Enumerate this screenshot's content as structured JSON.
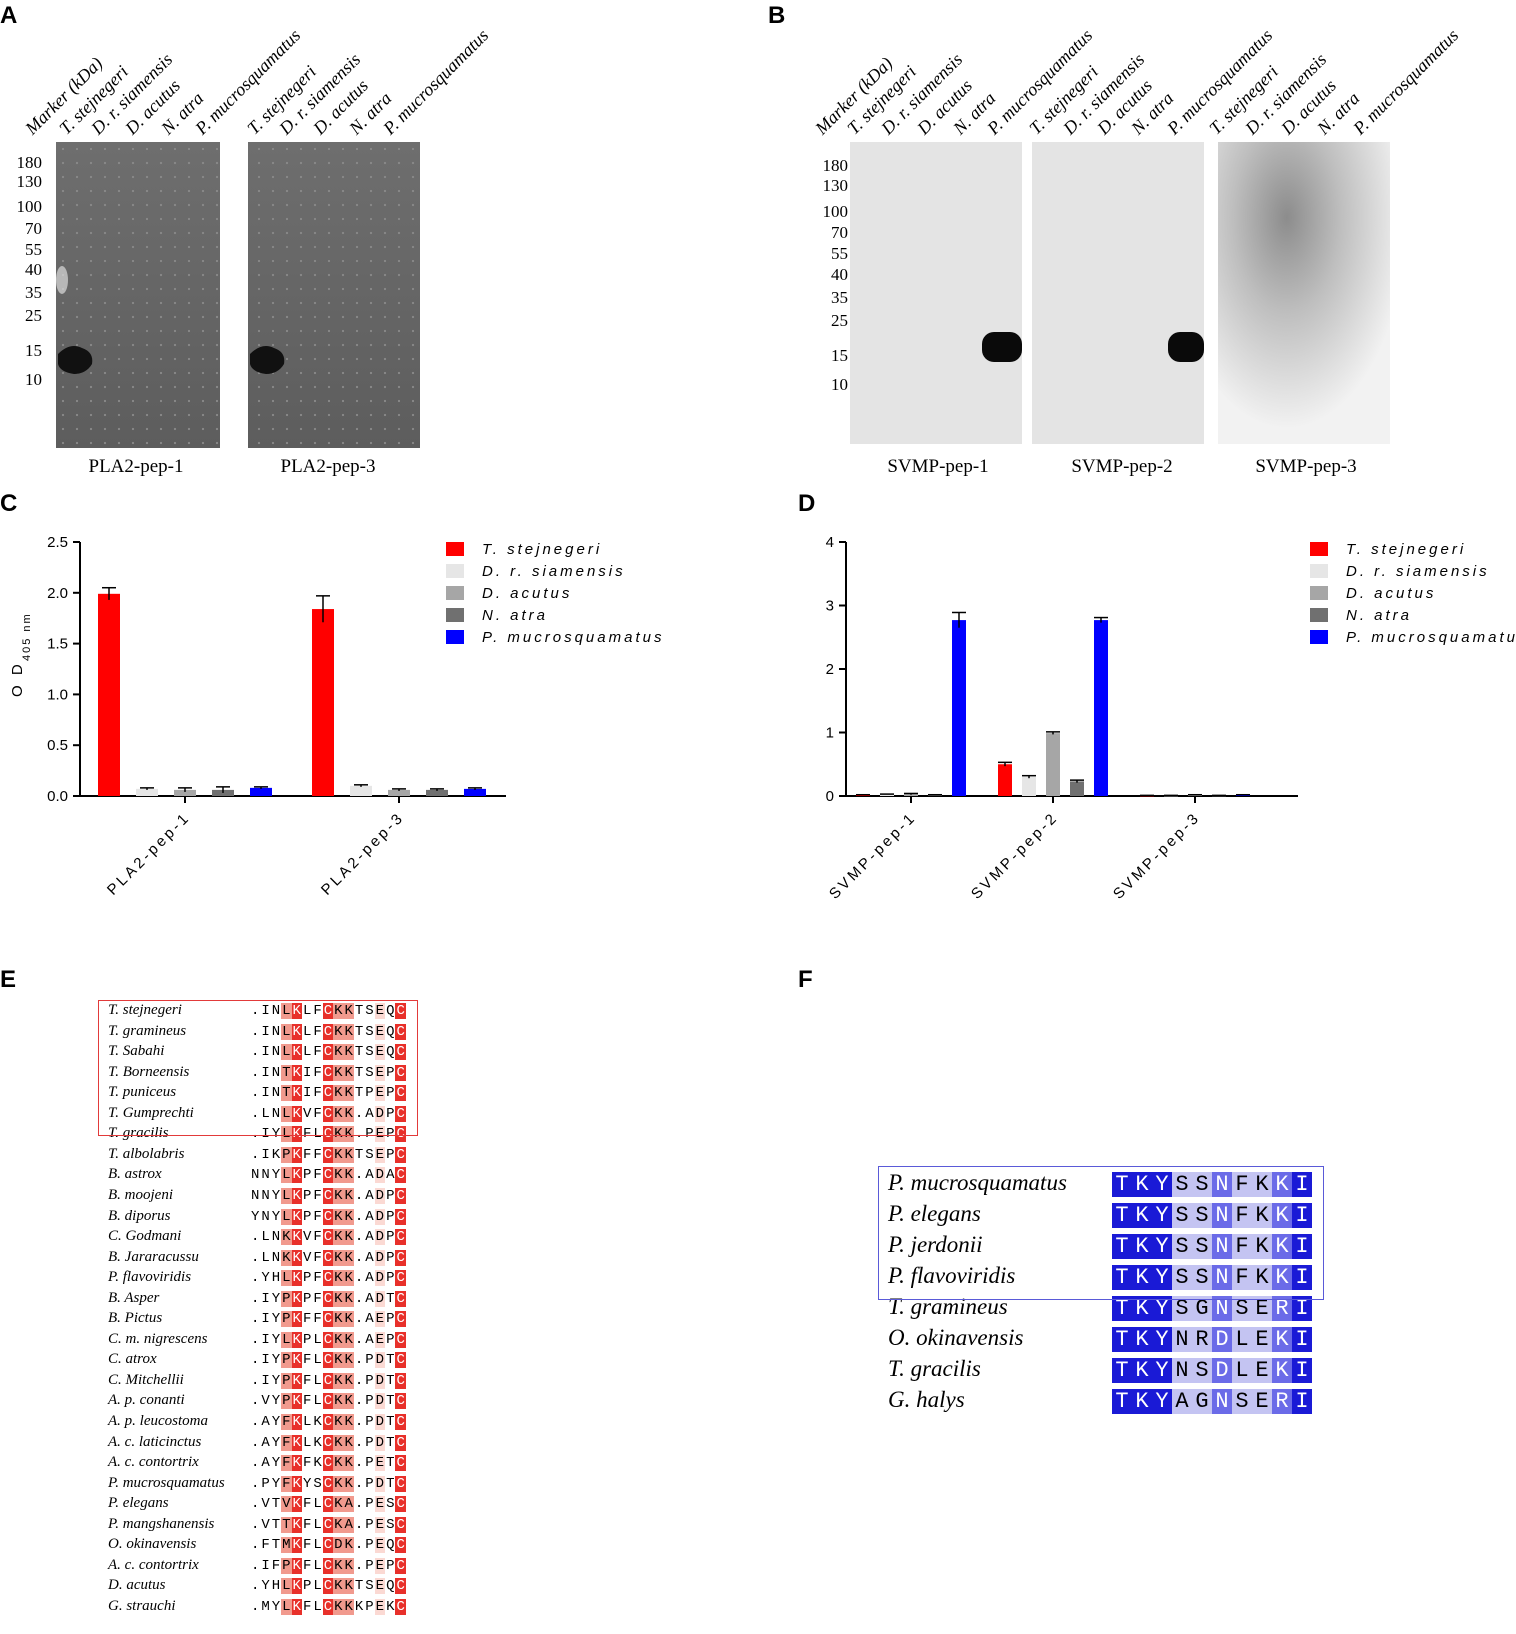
{
  "panels": {
    "A": "A",
    "B": "B",
    "C": "C",
    "D": "D",
    "E": "E",
    "F": "F"
  },
  "blot_lane_labels": {
    "marker": "Marker (kDa)",
    "species": [
      "T. stejnegeri",
      "D. r. siamensis",
      "D. acutus",
      "N. atra",
      "P. mucrosquamatus"
    ]
  },
  "blot_markers_A": [
    "180",
    "130",
    "100",
    "70",
    "55",
    "40",
    "35",
    "25",
    "15",
    "10"
  ],
  "blot_markers_B": [
    "180",
    "130",
    "100",
    "70",
    "55",
    "40",
    "35",
    "25",
    "15",
    "10"
  ],
  "blot_captions_A": [
    "PLA2-pep-1",
    "PLA2-pep-3"
  ],
  "blot_captions_B": [
    "SVMP-pep-1",
    "SVMP-pep-2",
    "SVMP-pep-3"
  ],
  "colors": {
    "T. stejnegeri": "#ff0000",
    "D. r. siamensis": "#e6e6e6",
    "D. acutus": "#a6a6a6",
    "N. atra": "#707070",
    "P. mucrosquamatus": "#0000ff",
    "red_full": "#e8302a",
    "red_mid": "#f19a8e",
    "red_light": "#fbd9d3",
    "blue_full": "#1a1ad6",
    "blue_mid": "#6b6be8",
    "blue_light": "#c4c4f2"
  },
  "chart_data": [
    {
      "type": "bar",
      "panel": "C",
      "categories": [
        "PLA2-pep-1",
        "PLA2-pep-3"
      ],
      "series": [
        {
          "name": "T. stejnegeri",
          "values": [
            1.99,
            1.84
          ],
          "errors": [
            0.06,
            0.13
          ]
        },
        {
          "name": "D. r. siamensis",
          "values": [
            0.07,
            0.1
          ],
          "errors": [
            0.01,
            0.01
          ]
        },
        {
          "name": "D. acutus",
          "values": [
            0.06,
            0.06
          ],
          "errors": [
            0.02,
            0.01
          ]
        },
        {
          "name": "N. atra",
          "values": [
            0.06,
            0.06
          ],
          "errors": [
            0.03,
            0.01
          ]
        },
        {
          "name": "P. mucrosquamatus",
          "values": [
            0.08,
            0.07
          ],
          "errors": [
            0.01,
            0.01
          ]
        }
      ],
      "ylabel_main": "O D",
      "ylabel_sub": "405 nm",
      "ylim": [
        0,
        2.5
      ],
      "yticks": [
        "0.0",
        "0.5",
        "1.0",
        "1.5",
        "2.0",
        "2.5"
      ],
      "legend": "top-right"
    },
    {
      "type": "bar",
      "panel": "D",
      "categories": [
        "SVMP-pep-1",
        "SVMP-pep-2",
        "SVMP-pep-3"
      ],
      "series": [
        {
          "name": "T. stejnegeri",
          "values": [
            0.02,
            0.5,
            0.01
          ],
          "errors": [
            0.0,
            0.03,
            0.0
          ]
        },
        {
          "name": "D. r. siamensis",
          "values": [
            0.03,
            0.3,
            0.01
          ],
          "errors": [
            0.0,
            0.02,
            0.0
          ]
        },
        {
          "name": "D. acutus",
          "values": [
            0.03,
            0.99,
            0.02
          ],
          "errors": [
            0.01,
            0.02,
            0.0
          ]
        },
        {
          "name": "N. atra",
          "values": [
            0.02,
            0.23,
            0.01
          ],
          "errors": [
            0.0,
            0.02,
            0.0
          ]
        },
        {
          "name": "P. mucrosquamatus",
          "values": [
            2.77,
            2.77,
            0.02
          ],
          "errors": [
            0.12,
            0.04,
            0.0
          ]
        }
      ],
      "ylabel_main": "O D",
      "ylabel_sub": "405 nm",
      "ylim": [
        0,
        4
      ],
      "yticks": [
        "0",
        "1",
        "2",
        "3",
        "4"
      ],
      "legend": "top-right"
    }
  ],
  "alignment_E": {
    "species": [
      "T. stejnegeri",
      "T. gramineus",
      "T. Sabahi",
      "T. Borneensis",
      "T. puniceus",
      "T. Gumprechti",
      "T. gracilis",
      "T. albolabris",
      "B. astrox",
      "B. moojeni",
      "B. diporus",
      "C. Godmani",
      "B. Jararacussu",
      "P. flavoviridis",
      "B. Asper",
      "B. Pictus",
      "C. m. nigrescens",
      "C. atrox",
      "C. Mitchellii",
      "A. p. conanti",
      "A.   p. leucostoma",
      "A. c. laticinctus",
      "A.   c. contortrix",
      "P. mucrosquamatus",
      "P. elegans",
      "P. mangshanensis",
      "O. okinavensis",
      "A. c. contortrix",
      "D. acutus",
      "G. strauchi"
    ],
    "sequences": [
      ".INLKLFCKKTSEQC",
      ".INLKLFCKKTSEQC",
      ".INLKLFCKKTSEQC",
      ".INTKIFCKKTSEPC",
      ".INTKIFCKKTPEPC",
      ".LNLKVFCKK.ADPC",
      ".IYLKFLCKK.PEPC",
      ".IKPKFFCKKTSEPC",
      "NNYLKPFCKK.ADAC",
      "NNYLKPFCKK.ADPC",
      "YNYLKPFCKK.ADPC",
      ".LNKKVFCKK.ADPC",
      ".LNKKVFCKK.ADPC",
      ".YHLKPFCKK.ADPC",
      ".IYPKPFCKK.ADTC",
      ".IYPKFFCKK.AEPC",
      ".IYLKPLCKK.AEPC",
      ".IYPKFLCKK.PDTC",
      ".IYPKFLCKK.PDTC",
      ".VYPKFLCKK.PDTC",
      ".AYFKLKCKK.PDTC",
      ".AYFKLKCKK.PDTC",
      ".AYFKFKCKK.PETC",
      ".PYFKYSCKK.PDTC",
      ".VTVKFLCKA.PESC",
      ".VTTKFLCKA.PESC",
      ".FTMKFLCDK.PEQC",
      ".IFPKFLCKK.PEPC",
      ".YHLKPLCKKTSEQC",
      ".MYLKFLCKKKPEKC"
    ]
  },
  "alignment_F": {
    "species": [
      "P. mucrosquamatus",
      "P. elegans",
      "P. jerdonii",
      "P. flavoviridis",
      "T. gramineus",
      "O. okinavensis",
      "T. gracilis",
      "G. halys"
    ],
    "sequences": [
      "TKYSSNFKKI",
      "TKYSSNFKKI",
      "TKYSSNFKKI",
      "TKYSSNFKKI",
      "TKYSGNSERI",
      "TKYNRDLEKI",
      "TKYNSDLEKI",
      "TKYAGNSERI"
    ]
  }
}
